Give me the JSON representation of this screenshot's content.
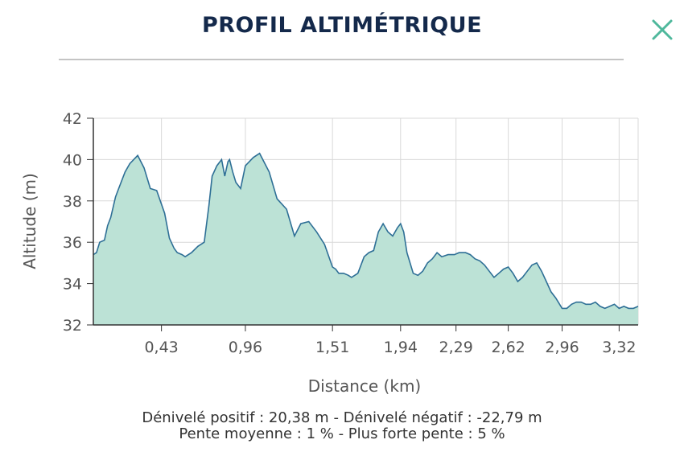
{
  "header": {
    "title": "PROFIL ALTIMÉTRIQUE",
    "close_icon": "close-icon"
  },
  "colors": {
    "title": "#14294b",
    "close": "#4fb89c",
    "area_fill": "#bce2d6",
    "line": "#2e6f96",
    "grid": "#d9d9d9"
  },
  "chart_data": {
    "type": "area",
    "xlabel": "Distance (km)",
    "ylabel": "Altitude (m)",
    "ylim": [
      32,
      42
    ],
    "yticks": [
      32,
      34,
      36,
      38,
      40,
      42
    ],
    "xticks": [
      {
        "value": 0.43,
        "label": "0,43"
      },
      {
        "value": 0.96,
        "label": "0,96"
      },
      {
        "value": 1.51,
        "label": "1,51"
      },
      {
        "value": 1.94,
        "label": "1,94"
      },
      {
        "value": 2.29,
        "label": "2,29"
      },
      {
        "value": 2.62,
        "label": "2,62"
      },
      {
        "value": 2.96,
        "label": "2,96"
      },
      {
        "value": 3.32,
        "label": "3,32"
      }
    ],
    "grid": true,
    "legend": false,
    "series": [
      {
        "x": [
          0,
          0.02,
          0.04,
          0.07,
          0.09,
          0.11,
          0.14,
          0.16,
          0.2,
          0.23,
          0.28,
          0.32,
          0.36,
          0.4,
          0.45,
          0.48,
          0.51,
          0.53,
          0.56,
          0.58,
          0.62,
          0.66,
          0.7,
          0.73,
          0.75,
          0.78,
          0.81,
          0.83,
          0.85,
          0.86,
          0.88,
          0.9,
          0.93,
          0.96,
          1.01,
          1.05,
          1.11,
          1.16,
          1.22,
          1.27,
          1.31,
          1.36,
          1.41,
          1.46,
          1.51,
          1.53,
          1.55,
          1.58,
          1.61,
          1.63,
          1.67,
          1.71,
          1.74,
          1.77,
          1.8,
          1.83,
          1.86,
          1.89,
          1.92,
          1.94,
          1.96,
          1.98,
          2.02,
          2.05,
          2.08,
          2.11,
          2.14,
          2.17,
          2.2,
          2.24,
          2.28,
          2.31,
          2.35,
          2.38,
          2.41,
          2.44,
          2.47,
          2.5,
          2.53,
          2.56,
          2.59,
          2.62,
          2.65,
          2.68,
          2.71,
          2.74,
          2.77,
          2.8,
          2.83,
          2.86,
          2.89,
          2.92,
          2.96,
          2.99,
          3.02,
          3.05,
          3.08,
          3.11,
          3.14,
          3.17,
          3.2,
          3.23,
          3.26,
          3.29,
          3.32,
          3.35,
          3.38,
          3.41,
          3.44
        ],
        "y": [
          35.4,
          35.5,
          36.0,
          36.1,
          36.8,
          37.2,
          38.2,
          38.6,
          39.4,
          39.8,
          40.2,
          39.6,
          38.6,
          38.5,
          37.4,
          36.2,
          35.7,
          35.5,
          35.4,
          35.3,
          35.5,
          35.8,
          36.0,
          37.8,
          39.2,
          39.7,
          40.0,
          39.2,
          39.9,
          40.0,
          39.4,
          38.9,
          38.6,
          39.7,
          40.1,
          40.3,
          39.4,
          38.1,
          37.6,
          36.3,
          36.9,
          37.0,
          36.5,
          35.9,
          34.8,
          34.7,
          34.5,
          34.5,
          34.4,
          34.3,
          34.5,
          35.3,
          35.5,
          35.6,
          36.5,
          36.9,
          36.5,
          36.3,
          36.7,
          36.9,
          36.5,
          35.5,
          34.5,
          34.4,
          34.6,
          35.0,
          35.2,
          35.5,
          35.3,
          35.4,
          35.4,
          35.5,
          35.5,
          35.4,
          35.2,
          35.1,
          34.9,
          34.6,
          34.3,
          34.5,
          34.7,
          34.8,
          34.5,
          34.1,
          34.3,
          34.6,
          34.9,
          35.0,
          34.6,
          34.1,
          33.6,
          33.3,
          32.8,
          32.8,
          33.0,
          33.1,
          33.1,
          33.0,
          33.0,
          33.1,
          32.9,
          32.8,
          32.9,
          33.0,
          32.8,
          32.9,
          32.8,
          32.8,
          32.9
        ]
      }
    ],
    "summary_line1": "Dénivelé positif : 20,38 m - Dénivelé négatif : -22,79 m",
    "summary_line2": "Pente moyenne : 1 % - Plus forte pente : 5 %"
  }
}
